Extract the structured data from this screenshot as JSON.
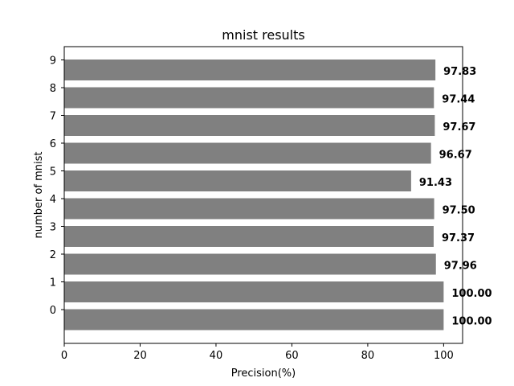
{
  "chart_data": {
    "type": "bar",
    "orientation": "horizontal",
    "title": "mnist results",
    "xlabel": "Precision(%)",
    "ylabel": "number of mnist",
    "categories": [
      "0",
      "1",
      "2",
      "3",
      "4",
      "5",
      "6",
      "7",
      "8",
      "9"
    ],
    "values": [
      100.0,
      100.0,
      97.96,
      97.37,
      97.5,
      91.43,
      96.67,
      97.67,
      97.44,
      97.83
    ],
    "data_labels": [
      "100.00",
      "100.00",
      "97.96",
      "97.37",
      "97.50",
      "91.43",
      "96.67",
      "97.67",
      "97.44",
      "97.83"
    ],
    "xlim": [
      0,
      105
    ],
    "xticks": [
      0,
      20,
      40,
      60,
      80,
      100
    ],
    "grid": false,
    "bar_color": "#808080"
  }
}
